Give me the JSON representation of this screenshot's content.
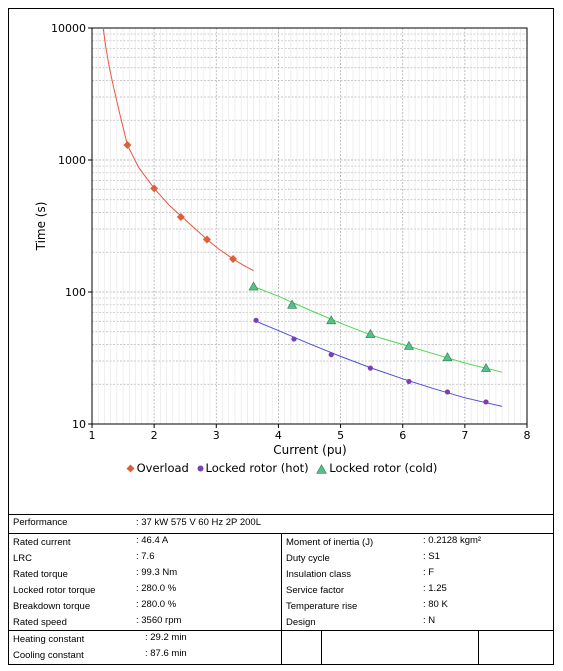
{
  "chart_data": {
    "type": "line",
    "title": "",
    "xlabel": "Current (pu)",
    "ylabel": "Time (s)",
    "xlim": [
      1,
      8
    ],
    "ylim": [
      10,
      10000
    ],
    "yscale": "log",
    "grid": true,
    "legend_position": "bottom",
    "x_ticks": [
      "1",
      "2",
      "3",
      "4",
      "5",
      "6",
      "7",
      "8"
    ],
    "y_ticks": [
      "10",
      "100",
      "1000",
      "10000"
    ],
    "series": [
      {
        "name": "Overload",
        "color": "#e8563e",
        "marker": "diamond",
        "marker_color": "#d9623b",
        "curve_x": [
          1.18,
          1.22,
          1.28,
          1.35,
          1.45,
          1.57,
          1.75,
          2.0,
          2.25,
          2.45,
          2.7,
          2.85,
          3.05,
          3.27,
          3.45,
          3.6
        ],
        "curve_y": [
          10000,
          7200,
          5000,
          3500,
          2200,
          1300,
          880,
          610,
          450,
          370,
          290,
          250,
          210,
          178,
          158,
          145
        ],
        "points": [
          {
            "x": 1.57,
            "y": 1300
          },
          {
            "x": 2.0,
            "y": 610
          },
          {
            "x": 2.43,
            "y": 370
          },
          {
            "x": 2.85,
            "y": 250
          },
          {
            "x": 3.27,
            "y": 178
          }
        ]
      },
      {
        "name": "Locked rotor (hot)",
        "color": "#5050d8",
        "marker": "circle",
        "marker_color": "#7a3fb5",
        "curve_x": [
          3.6,
          4.0,
          4.5,
          5.0,
          5.5,
          6.0,
          6.5,
          7.0,
          7.6
        ],
        "curve_y": [
          61,
          51,
          40.5,
          32.5,
          26.5,
          22,
          18.5,
          15.8,
          13.6
        ],
        "points": [
          {
            "x": 3.64,
            "y": 61
          },
          {
            "x": 4.25,
            "y": 44
          },
          {
            "x": 4.85,
            "y": 33.5
          },
          {
            "x": 5.48,
            "y": 26.5
          },
          {
            "x": 6.1,
            "y": 21
          },
          {
            "x": 6.72,
            "y": 17.5
          },
          {
            "x": 7.34,
            "y": 14.7
          }
        ]
      },
      {
        "name": "Locked rotor (cold)",
        "color": "#4fd84f",
        "marker": "triangle",
        "marker_color": "#55c18a",
        "curve_x": [
          3.6,
          4.0,
          4.5,
          5.0,
          5.5,
          6.0,
          6.5,
          7.0,
          7.6
        ],
        "curve_y": [
          110,
          93,
          73,
          58,
          47,
          40,
          34,
          29,
          24.7
        ],
        "points": [
          {
            "x": 3.6,
            "y": 110
          },
          {
            "x": 4.22,
            "y": 80
          },
          {
            "x": 4.85,
            "y": 61
          },
          {
            "x": 5.48,
            "y": 48
          },
          {
            "x": 6.1,
            "y": 39
          },
          {
            "x": 6.72,
            "y": 32
          },
          {
            "x": 7.34,
            "y": 26.5
          }
        ]
      }
    ]
  },
  "table": {
    "performance_label": "Performance",
    "performance_value": ": 37 kW 575 V 60 Hz 2P 200L",
    "left": [
      {
        "label": "Rated current",
        "value": ": 46.4 A"
      },
      {
        "label": "LRC",
        "value": ": 7.6"
      },
      {
        "label": "Rated torque",
        "value": ": 99.3 Nm"
      },
      {
        "label": "Locked rotor torque",
        "value": ": 280.0 %"
      },
      {
        "label": "Breakdown torque",
        "value": ": 280.0 %"
      },
      {
        "label": "Rated speed",
        "value": ": 3560 rpm"
      }
    ],
    "right": [
      {
        "label": "Moment of inertia (J)",
        "value": ": 0.2128 kgm²"
      },
      {
        "label": "Duty cycle",
        "value": ": S1"
      },
      {
        "label": "Insulation class",
        "value": ": F"
      },
      {
        "label": "Service factor",
        "value": ": 1.25"
      },
      {
        "label": "Temperature rise",
        "value": ": 80 K"
      },
      {
        "label": "Design",
        "value": ": N"
      }
    ],
    "bottom": [
      {
        "label": "Heating constant",
        "value": ": 29.2 min"
      },
      {
        "label": "Cooling constant",
        "value": ": 87.6 min"
      }
    ]
  }
}
